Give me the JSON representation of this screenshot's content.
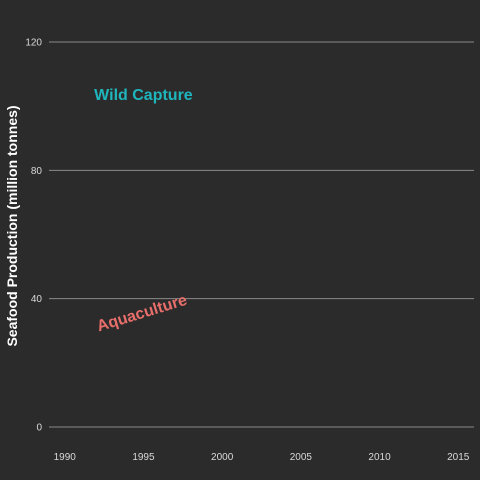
{
  "chart_data": {
    "type": "line",
    "title": "",
    "xlabel": "",
    "ylabel": "Seafood Production (million tonnes)",
    "xlim": [
      1989,
      2016
    ],
    "ylim": [
      0,
      120
    ],
    "x_ticks": [
      "1990",
      "1995",
      "2000",
      "2005",
      "2010",
      "2015"
    ],
    "y_ticks": [
      "0",
      "40",
      "80",
      "120"
    ],
    "grid": "horizontal",
    "legend": "none",
    "series": [
      {
        "name": "Wild Capture",
        "color": "#1fb5bd",
        "label_year": 1995,
        "label_value": 102
      },
      {
        "name": "Aquaculture",
        "color": "#e86e6b",
        "label_year": 1995,
        "label_value": 34
      }
    ]
  },
  "colors": {
    "background": "#2b2b2b",
    "grid": "#8a8a8a",
    "text": "#d9d9d9"
  }
}
